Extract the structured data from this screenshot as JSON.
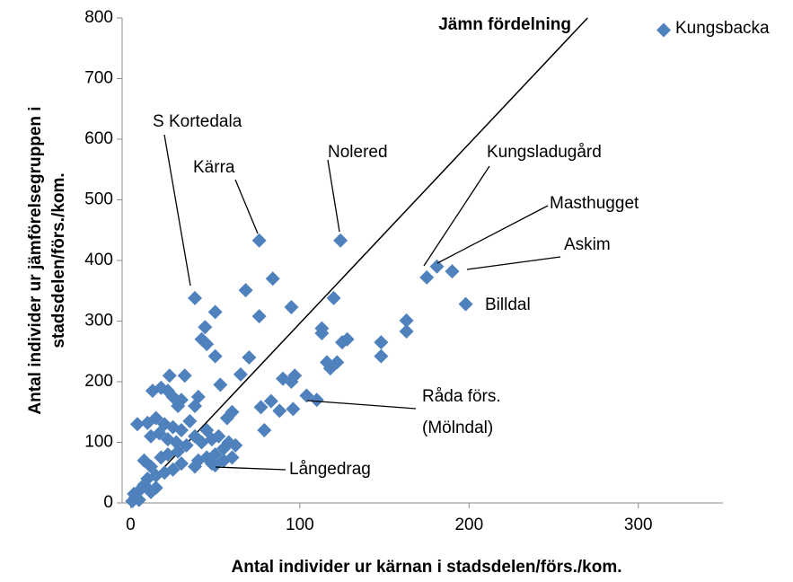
{
  "chart_data": {
    "type": "scatter",
    "x_label": "Antal individer ur kärnan i stadsdelen/förs./kom.",
    "y_label": [
      "Antal individer ur jämförelsegruppen i",
      "stadsdelen/förs./kom."
    ],
    "xlim": [
      -5,
      350
    ],
    "xticks": [
      0,
      100,
      200,
      300
    ],
    "ylim": [
      0,
      800
    ],
    "yticks": [
      0,
      100,
      200,
      300,
      400,
      500,
      600,
      700,
      800
    ],
    "grid": false,
    "color": "#4f81bd",
    "reference_line": {
      "name": "Jämn fördelning",
      "x": [
        0,
        270
      ],
      "y": [
        0,
        800
      ]
    },
    "annotations": [
      "Kungsbacka",
      "Masthugget",
      "Askim",
      "Kungsladugård",
      "Billdal",
      "Nolered",
      "Kärra",
      "S Kortedala",
      "Råda förs.",
      "(Mölndal)",
      "Långedrag"
    ],
    "x": [
      315,
      175,
      181,
      190,
      198,
      124,
      76,
      38,
      110,
      50,
      68,
      84,
      76,
      95,
      120,
      113,
      113,
      128,
      125,
      116,
      122,
      118,
      148,
      148,
      163,
      163,
      44,
      42,
      45,
      50,
      50,
      53,
      70,
      65,
      90,
      97,
      95,
      104,
      96,
      88,
      83,
      77,
      79,
      60,
      57,
      32,
      23,
      30,
      40,
      38,
      13,
      18,
      22,
      25,
      28,
      4,
      10,
      15,
      20,
      25,
      30,
      35,
      12,
      17,
      22,
      27,
      33,
      38,
      42,
      45,
      48,
      52,
      55,
      58,
      62,
      50,
      40,
      45,
      38,
      30,
      25,
      20,
      15,
      10,
      8,
      12,
      18,
      22,
      28,
      5,
      3,
      1,
      8,
      12,
      15,
      5,
      2,
      55,
      48,
      60
    ],
    "values": [
      780,
      372,
      390,
      382,
      328,
      433,
      433,
      338,
      170,
      62,
      351,
      370,
      308,
      323,
      338,
      288,
      280,
      270,
      265,
      232,
      232,
      222,
      265,
      242,
      301,
      283,
      290,
      270,
      262,
      315,
      242,
      195,
      240,
      212,
      205,
      210,
      200,
      177,
      155,
      152,
      168,
      158,
      120,
      150,
      140,
      210,
      210,
      170,
      175,
      160,
      185,
      190,
      185,
      175,
      160,
      130,
      132,
      140,
      130,
      125,
      120,
      135,
      110,
      115,
      105,
      100,
      95,
      110,
      100,
      120,
      105,
      110,
      90,
      100,
      95,
      80,
      70,
      75,
      60,
      65,
      55,
      50,
      45,
      40,
      70,
      60,
      75,
      80,
      85,
      20,
      10,
      3,
      30,
      18,
      25,
      5,
      15,
      70,
      65,
      75
    ]
  }
}
